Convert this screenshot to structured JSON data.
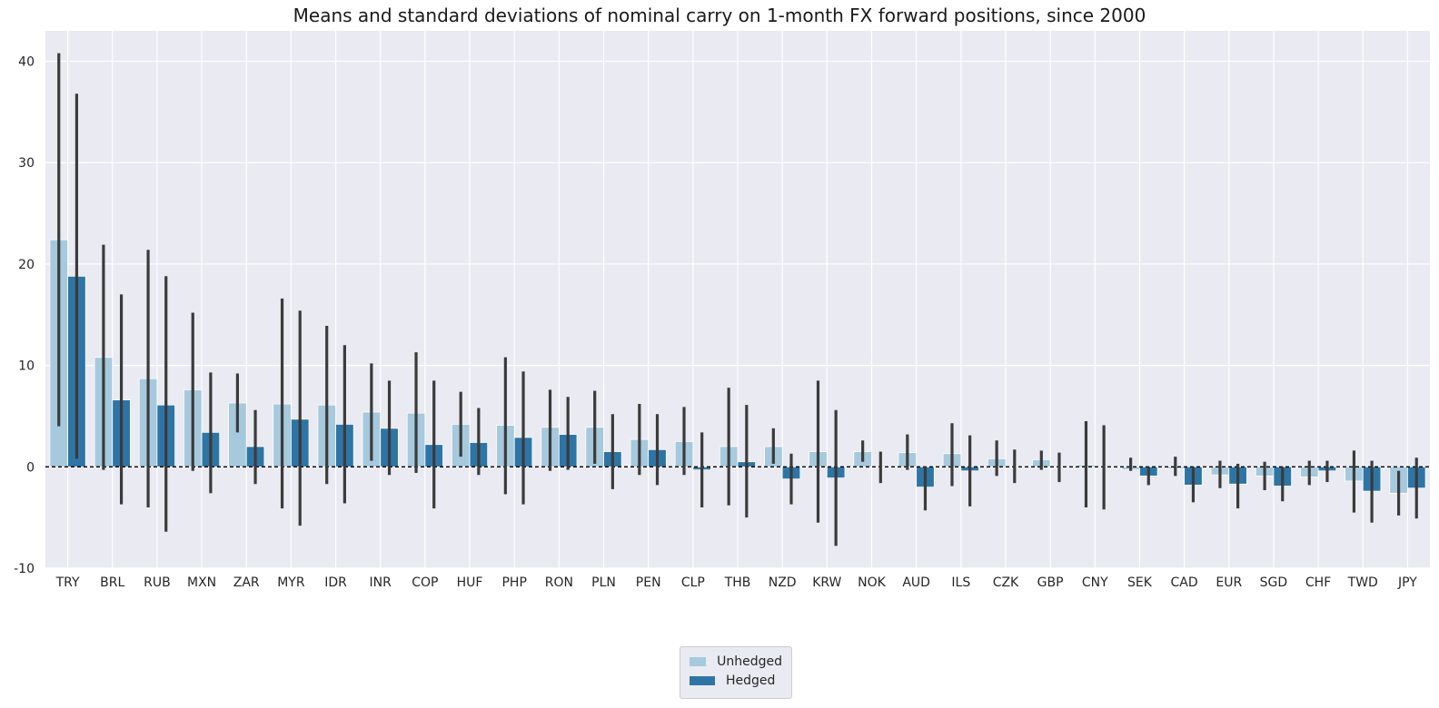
{
  "chart_data": {
    "type": "bar",
    "title": "Means and standard deviations of nominal carry on 1-month FX forward positions, since 2000",
    "xlabel": "",
    "ylabel": "",
    "ylim": [
      -10,
      43
    ],
    "yticks": [
      -10,
      0,
      10,
      20,
      30,
      40
    ],
    "grid": true,
    "zero_line": "dashed black at 0",
    "legend_position": "bottom-center",
    "categories": [
      "TRY",
      "BRL",
      "RUB",
      "MXN",
      "ZAR",
      "MYR",
      "IDR",
      "INR",
      "COP",
      "HUF",
      "PHP",
      "RON",
      "PLN",
      "PEN",
      "CLP",
      "THB",
      "NZD",
      "KRW",
      "NOK",
      "AUD",
      "ILS",
      "CZK",
      "GBP",
      "CNY",
      "SEK",
      "CAD",
      "EUR",
      "SGD",
      "CHF",
      "TWD",
      "JPY"
    ],
    "series": [
      {
        "name": "Unhedged",
        "color": "#a6c9dd",
        "values": [
          22.4,
          10.8,
          8.7,
          7.6,
          6.3,
          6.2,
          6.1,
          5.4,
          5.3,
          4.2,
          4.1,
          3.9,
          3.9,
          2.7,
          2.5,
          2.0,
          2.0,
          1.5,
          1.5,
          1.4,
          1.3,
          0.8,
          0.7,
          0.2,
          -0.3,
          -0.2,
          -0.8,
          -0.9,
          -1.0,
          -1.4,
          -2.6
        ],
        "err_low": [
          4.0,
          -0.3,
          -4.0,
          -0.4,
          3.4,
          -4.1,
          -1.7,
          0.6,
          -0.6,
          1.0,
          -2.7,
          -0.4,
          0.3,
          -0.8,
          -0.8,
          -3.8,
          0.3,
          -5.5,
          0.5,
          -0.3,
          -1.9,
          -0.9,
          -0.3,
          -4.0,
          -0.4,
          -0.9,
          -2.1,
          -2.3,
          -1.8,
          -4.5,
          -4.8
        ],
        "err_high": [
          40.8,
          21.9,
          21.4,
          15.2,
          9.2,
          16.6,
          13.9,
          10.2,
          11.3,
          7.4,
          10.8,
          7.6,
          7.5,
          6.2,
          5.9,
          7.8,
          3.8,
          8.5,
          2.6,
          3.2,
          4.3,
          2.6,
          1.6,
          4.5,
          0.9,
          1.0,
          0.6,
          0.5,
          0.6,
          1.6,
          -0.4
        ]
      },
      {
        "name": "Hedged",
        "color": "#2e75a6",
        "values": [
          18.8,
          6.6,
          6.1,
          3.4,
          2.0,
          4.7,
          4.2,
          3.8,
          2.2,
          2.4,
          2.9,
          3.2,
          1.5,
          1.7,
          -0.3,
          0.5,
          -1.2,
          -1.1,
          0.0,
          -2.0,
          -0.4,
          0.0,
          0.0,
          0.0,
          -0.9,
          -1.8,
          -1.7,
          -1.9,
          -0.4,
          -2.4,
          -2.1
        ],
        "err_low": [
          0.8,
          -3.7,
          -6.4,
          -2.6,
          -1.7,
          -5.8,
          -3.6,
          -0.8,
          -4.1,
          -0.8,
          -3.7,
          -0.3,
          -2.2,
          -1.8,
          -4.0,
          -5.0,
          -3.7,
          -7.8,
          -1.6,
          -4.3,
          -3.9,
          -1.6,
          -1.5,
          -4.2,
          -1.8,
          -3.5,
          -4.1,
          -3.4,
          -1.5,
          -5.5,
          -5.1
        ],
        "err_high": [
          36.8,
          17.0,
          18.8,
          9.3,
          5.6,
          15.4,
          12.0,
          8.5,
          8.5,
          5.8,
          9.4,
          6.9,
          5.2,
          5.2,
          3.4,
          6.1,
          1.3,
          5.6,
          1.5,
          0.0,
          3.1,
          1.7,
          1.4,
          4.1,
          0.0,
          0.0,
          0.3,
          0.0,
          0.6,
          0.6,
          0.9
        ]
      }
    ]
  }
}
